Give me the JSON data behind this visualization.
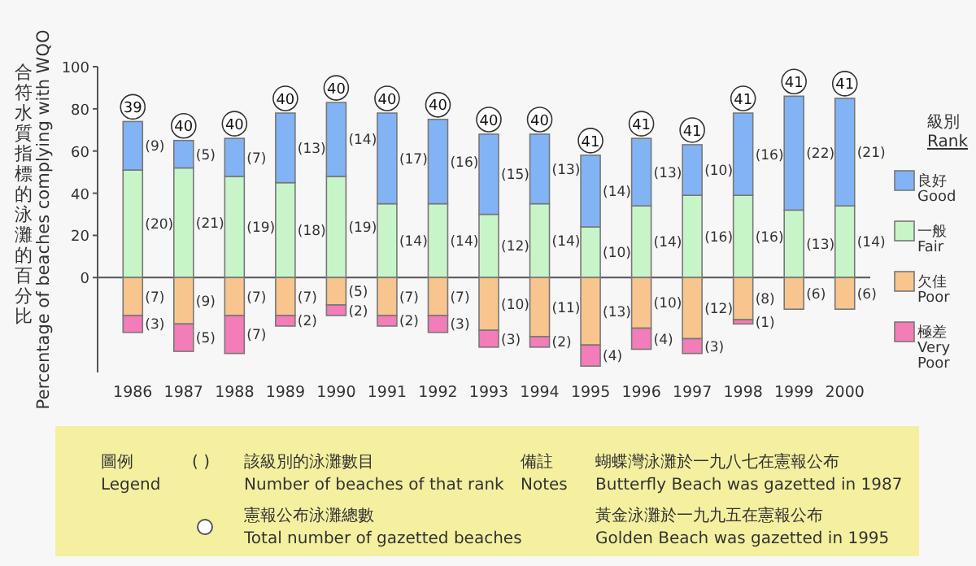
{
  "chart_data": {
    "type": "bar",
    "stacked": true,
    "ylabel": "合符水質指標的泳灘的百分比\nPercentage of beaches complying with WQO",
    "legend_title": "級別\nRank",
    "categories": [
      "1986",
      "1987",
      "1988",
      "1989",
      "1990",
      "1991",
      "1992",
      "1993",
      "1994",
      "1995",
      "1996",
      "1997",
      "1998",
      "1999",
      "2000"
    ],
    "series": [
      {
        "name": "一般 Fair",
        "color": "#c8f5c8",
        "values": [
          51,
          52,
          48,
          45,
          48,
          35,
          35,
          30,
          35,
          24,
          34,
          39,
          39,
          32,
          34
        ]
      },
      {
        "name": "良好 Good",
        "color": "#82b4f5",
        "values": [
          23,
          13,
          18,
          33,
          35,
          43,
          40,
          38,
          33,
          34,
          32,
          24,
          39,
          54,
          51
        ]
      },
      {
        "name": "欠佳 Poor",
        "color": "#f9c58e",
        "values": [
          -18,
          -22,
          -18,
          -18,
          -13,
          -18,
          -18,
          -25,
          -28,
          -32,
          -24,
          -29,
          -20,
          -15,
          -15
        ]
      },
      {
        "name": "極差 Very Poor",
        "color": "#f27db8",
        "values": [
          -8,
          -13,
          -18,
          -5,
          -5,
          -5,
          -8,
          -8,
          -5,
          -10,
          -10,
          -7,
          -2,
          0,
          0
        ]
      }
    ],
    "ylim": [
      -45,
      100
    ],
    "yticks": [
      0,
      20,
      40,
      60,
      80,
      100
    ],
    "ref_lines": [
      {
        "axis": "y",
        "value": 0,
        "color": "#555555"
      }
    ],
    "legend": "right",
    "annotations": [
      "圖例\nLegend",
      "( )",
      "該級別的泳灘數目\nNumber of beaches of that rank",
      "憲報公布泳灘總數\nTotal number of gazetted beaches",
      "備註\nNotes",
      "蝴蝶灣泳灘於一九八七在憲報公布\nButterfly Beach was gazetted in 1987",
      "黃金泳灘於一九九五在憲報公布\nGolden Beach was gazetted in 1995",
      "(20)",
      "(9)",
      "(7)",
      "(3)",
      "(21)",
      "(5)",
      "(9)",
      "(5)",
      "(19)",
      "(7)",
      "(7)",
      "(7)",
      "(18)",
      "(13)",
      "(7)",
      "(2)",
      "(19)",
      "(14)",
      "(5)",
      "(2)",
      "(14)",
      "(17)",
      "(7)",
      "(2)",
      "(14)",
      "(16)",
      "(7)",
      "(3)",
      "(12)",
      "(15)",
      "(10)",
      "(3)",
      "(14)",
      "(13)",
      "(11)",
      "(2)",
      "(10)",
      "(14)",
      "(13)",
      "(4)",
      "(14)",
      "(13)",
      "(10)",
      "(4)",
      "(16)",
      "(10)",
      "(12)",
      "(3)",
      "(16)",
      "(16)",
      "(8)",
      "(1)",
      "(13)",
      "(22)",
      "(6)",
      "(14)",
      "(21)",
      "(6)",
      {
        "text": "39",
        "x": "1986",
        "y": 74
      },
      {
        "text": "40",
        "x": "1987",
        "y": 65
      },
      {
        "text": "40",
        "x": "1988",
        "y": 66
      },
      {
        "text": "40",
        "x": "1989",
        "y": 78
      },
      {
        "text": "40",
        "x": "1990",
        "y": 83
      },
      {
        "text": "40",
        "x": "1991",
        "y": 78
      },
      {
        "text": "40",
        "x": "1992",
        "y": 75
      },
      {
        "text": "40",
        "x": "1993",
        "y": 68
      },
      {
        "text": "40",
        "x": "1994",
        "y": 68
      },
      {
        "text": "41",
        "x": "1995",
        "y": 58
      },
      {
        "text": "41",
        "x": "1996",
        "y": 66
      },
      {
        "text": "41",
        "x": "1997",
        "y": 63
      },
      {
        "text": "41",
        "x": "1998",
        "y": 78
      },
      {
        "text": "41",
        "x": "1999",
        "y": 86
      },
      {
        "text": "41",
        "x": "2000",
        "y": 85
      }
    ]
  }
}
